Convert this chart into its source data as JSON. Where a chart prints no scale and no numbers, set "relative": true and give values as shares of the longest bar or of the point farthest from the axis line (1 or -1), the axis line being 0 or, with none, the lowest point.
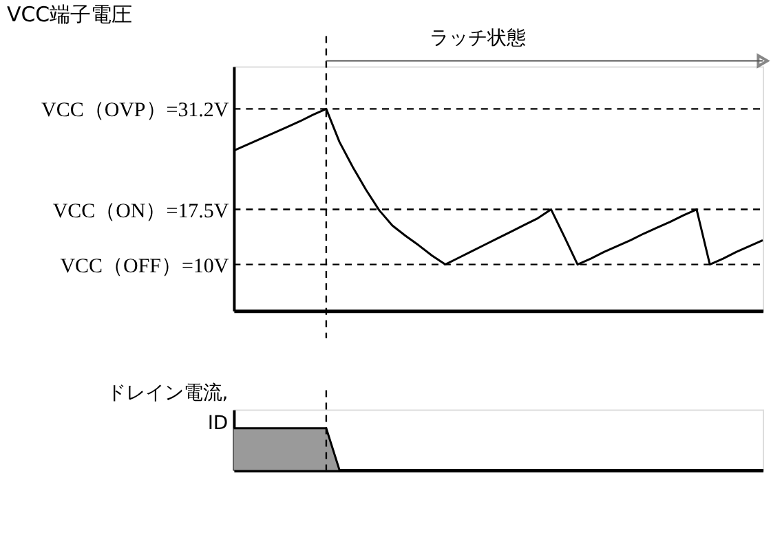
{
  "chart_data": [
    {
      "type": "line",
      "ylabel": "VCC端子電圧",
      "annotations": [
        "ラッチ状態"
      ],
      "categories": [
        null,
        null,
        null,
        null,
        null,
        null,
        null,
        null,
        null,
        null,
        null,
        null,
        null,
        null,
        null,
        null,
        null,
        null,
        null,
        null,
        null,
        null,
        null,
        null,
        null,
        null,
        null,
        null,
        null,
        null,
        null,
        null,
        null,
        null,
        null,
        null,
        null,
        null,
        null,
        null,
        null
      ],
      "series": [
        {
          "color": "#000000",
          "values": [
            25.5,
            26.3,
            27.1,
            27.9,
            28.7,
            29.5,
            30.4,
            31.2,
            26.7,
            23.3,
            20.2,
            17.4,
            15.3,
            13.9,
            12.6,
            11.2,
            10,
            10.9,
            11.8,
            12.7,
            13.6,
            14.5,
            15.4,
            16.3,
            17.5,
            13.8,
            10,
            10.8,
            11.7,
            12.5,
            13.3,
            14.2,
            15,
            15.8,
            16.7,
            17.5,
            10,
            10.8,
            11.7,
            12.5,
            13.3
          ]
        }
      ],
      "ylim": [
        3.7,
        37
      ],
      "yticks": [
        {
          "value": 10,
          "label": "VCC（OFF）=10V"
        },
        {
          "value": 17.5,
          "label": "VCC（ON）=17.5V"
        },
        {
          "value": 31.2,
          "label": "VCC（OVP）=31.2V"
        }
      ],
      "tick_labels": "y",
      "line_style": "solid",
      "ref_lines": [
        {
          "axis": "y",
          "value": 31.2,
          "line_style": "dashed",
          "color": "#000000"
        },
        {
          "axis": "y",
          "value": 17.5,
          "line_style": "dashed",
          "color": "#000000"
        },
        {
          "axis": "y",
          "value": 10,
          "line_style": "dashed",
          "color": "#000000"
        }
      ]
    },
    {
      "type": "area",
      "ylabel": "ドレイン電流,\nID",
      "relative": true,
      "categories": [
        null,
        null,
        null,
        null,
        null,
        null,
        null,
        null,
        null,
        null,
        null,
        null,
        null,
        null,
        null,
        null,
        null,
        null,
        null,
        null,
        null,
        null,
        null,
        null,
        null,
        null,
        null,
        null,
        null,
        null,
        null,
        null,
        null,
        null,
        null,
        null,
        null,
        null,
        null,
        null,
        null
      ],
      "series": [
        {
          "color": "#9a9a9a",
          "values": [
            1,
            1,
            1,
            1,
            1,
            1,
            1,
            1,
            0,
            0,
            0,
            0,
            0,
            0,
            0,
            0,
            0,
            0,
            0,
            0,
            0,
            0,
            0,
            0,
            0,
            0,
            0,
            0,
            0,
            0,
            0,
            0,
            0,
            0,
            0,
            0,
            0,
            0,
            0,
            0,
            0
          ]
        }
      ],
      "tick_labels": false
    }
  ]
}
